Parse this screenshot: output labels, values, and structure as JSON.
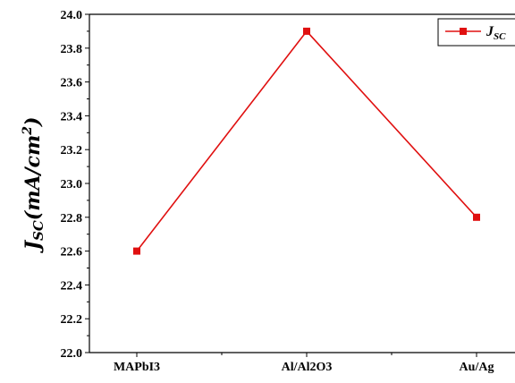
{
  "chart_data": {
    "type": "line",
    "categories": [
      "MAPbI3",
      "Al/Al2O3",
      "Au/Ag"
    ],
    "series": [
      {
        "name": "J_SC",
        "values": [
          22.6,
          23.9,
          22.8
        ],
        "color": "#e01010",
        "marker": "square"
      }
    ],
    "ylabel": "Jsc(mA/cm2)",
    "ylim": [
      22.0,
      24.0
    ],
    "yticks": [
      "22.0",
      "22.2",
      "22.4",
      "22.6",
      "22.8",
      "23.0",
      "23.2",
      "23.4",
      "23.6",
      "23.8",
      "24.0"
    ],
    "grid": false,
    "legend": {
      "position": "top-right",
      "label": "J_SC"
    }
  }
}
